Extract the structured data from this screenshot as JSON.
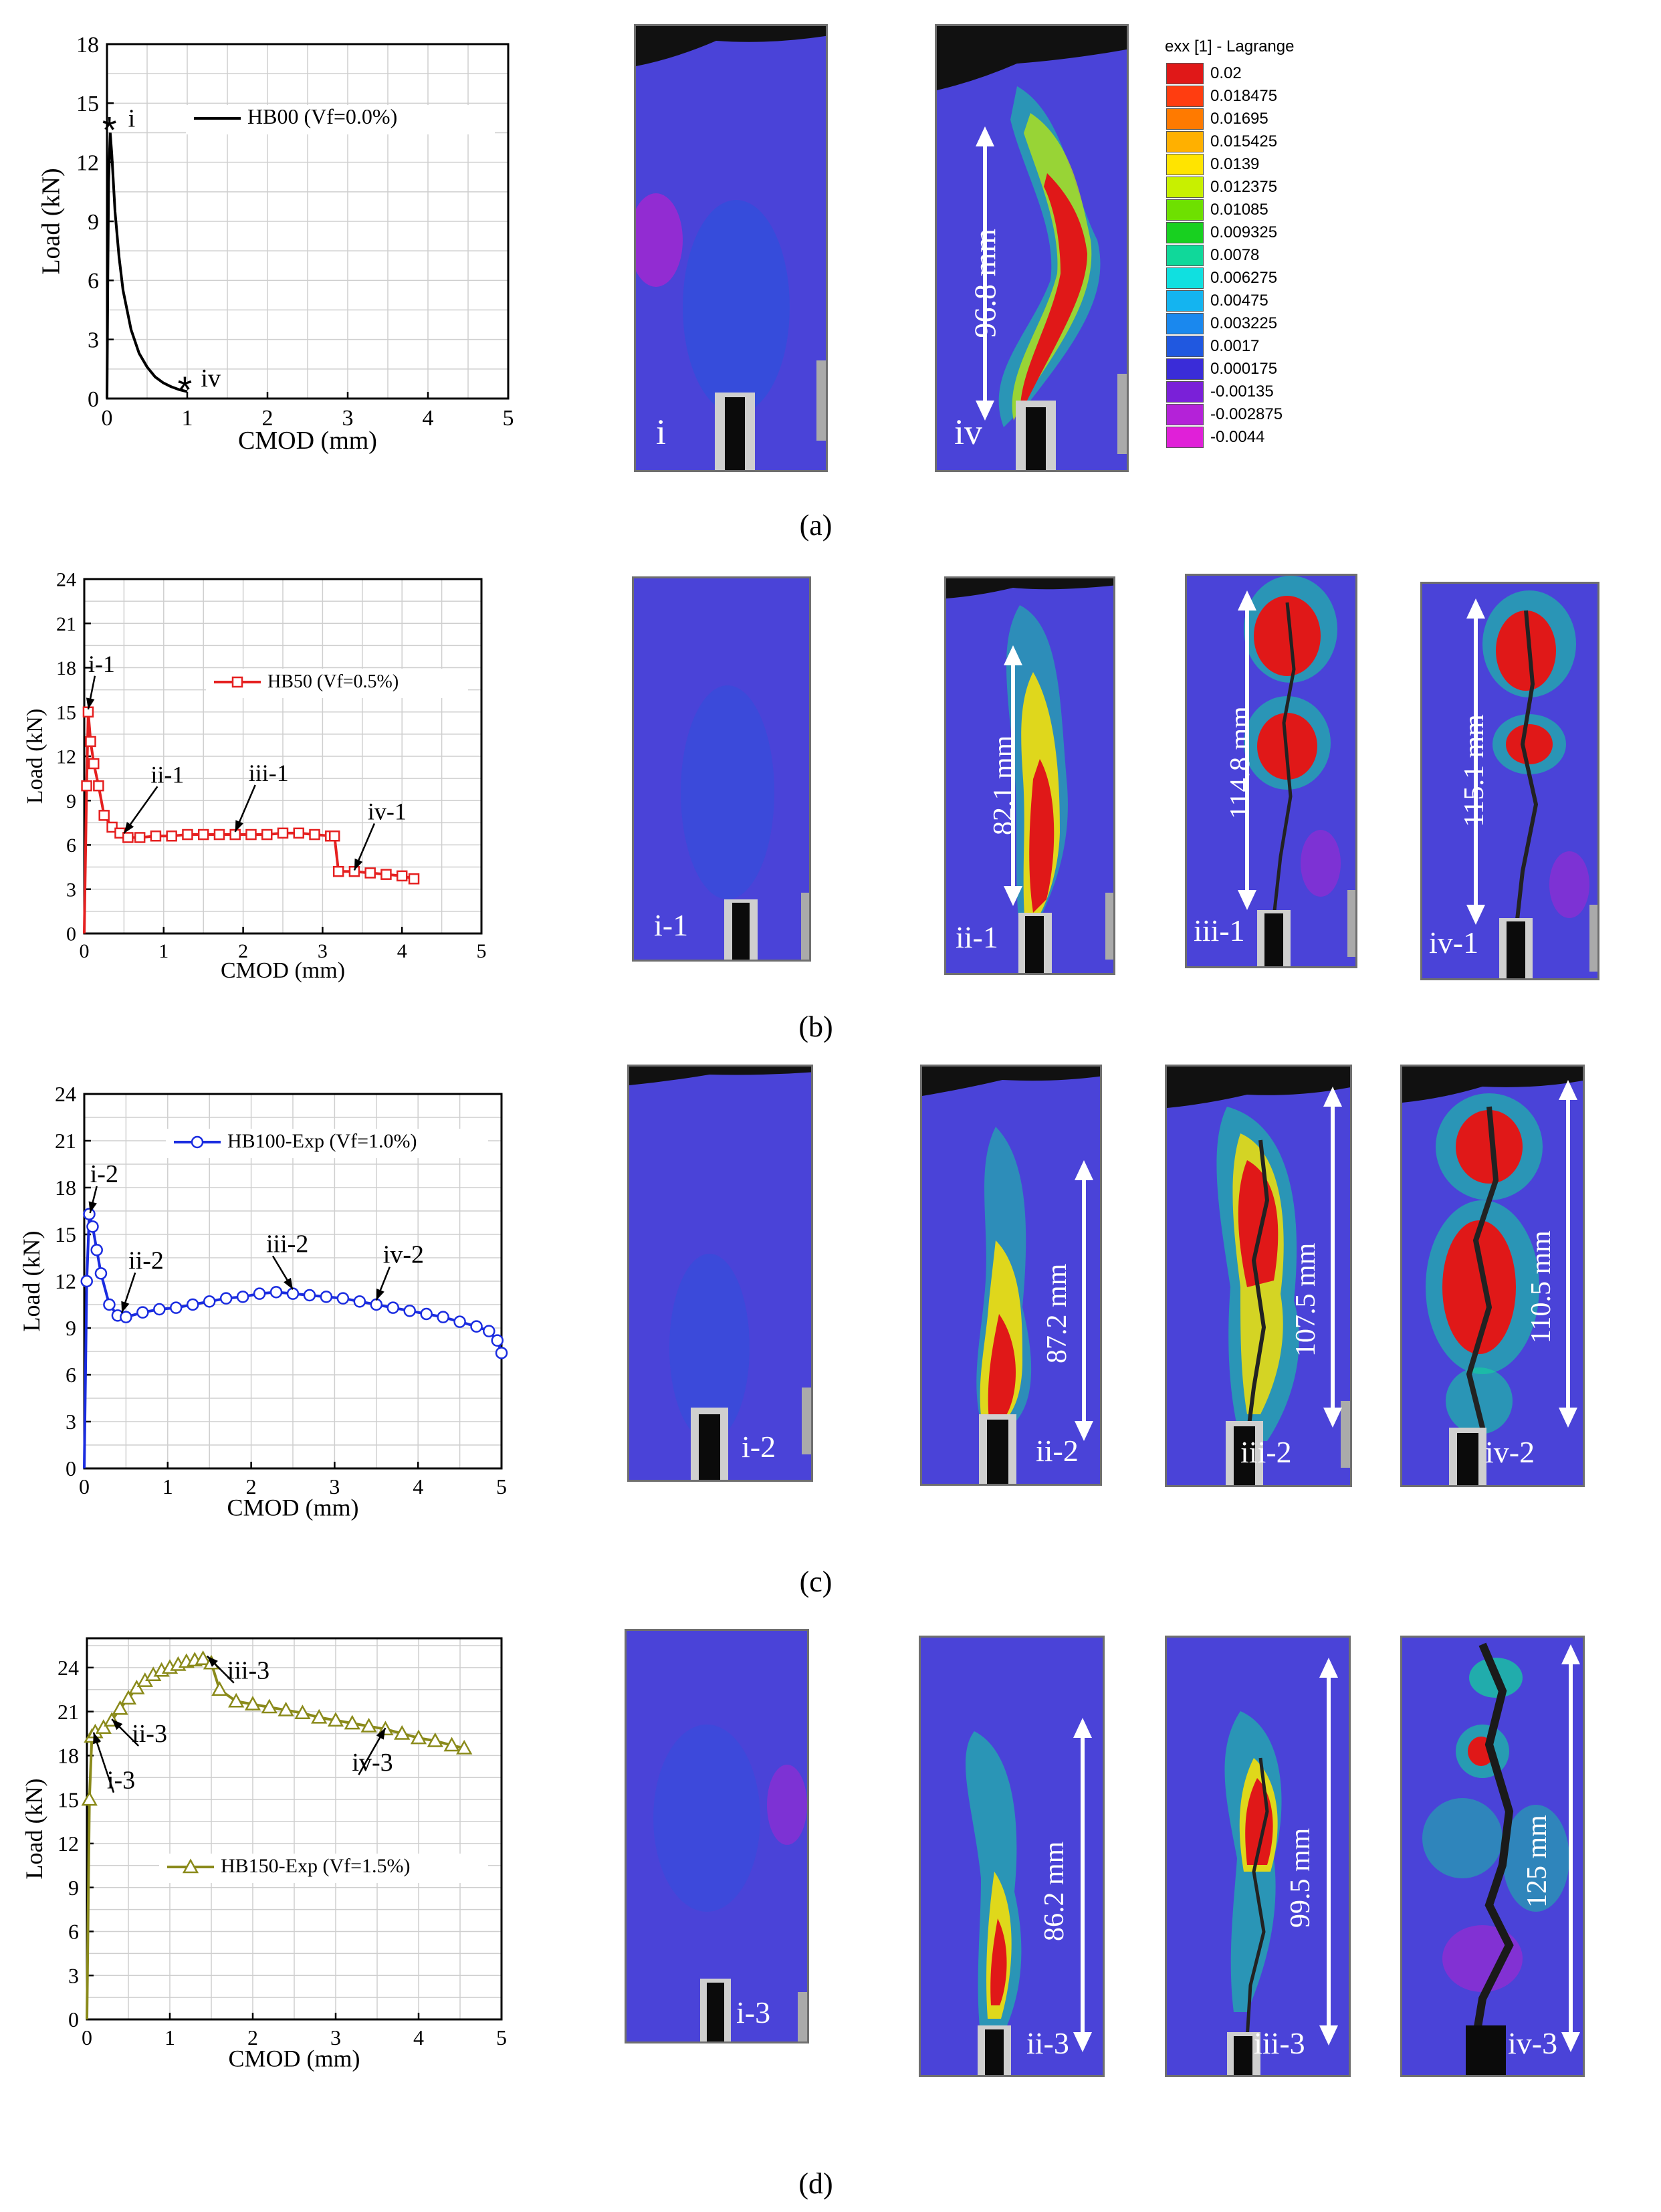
{
  "colors": {
    "field_low": "#4a43d8",
    "specimen_border": "#6f6f6f",
    "a_curve": "#000000",
    "b_curve": "#e52020",
    "c_curve": "#1a2ce0",
    "d_curve": "#8a8a1a"
  },
  "chart_data": [
    {
      "id": "a",
      "type": "line",
      "xlabel": "CMOD (mm)",
      "ylabel": "Load (kN)",
      "xlim": [
        0,
        5
      ],
      "ylim": [
        0,
        18
      ],
      "xticks": [
        "0",
        "1",
        "2",
        "3",
        "4",
        "5"
      ],
      "yticks": [
        "0",
        "3",
        "6",
        "9",
        "12",
        "15",
        "18"
      ],
      "grid": true,
      "legend_position": "top-right",
      "series": [
        {
          "name": "HB00   (Vf=0.0%)",
          "marker": "none",
          "x": [
            0.0,
            0.01,
            0.02,
            0.04,
            0.06,
            0.1,
            0.15,
            0.2,
            0.3,
            0.4,
            0.5,
            0.6,
            0.7,
            0.8,
            0.9,
            1.0
          ],
          "y": [
            0.0,
            6.0,
            11.0,
            13.5,
            12.4,
            9.5,
            7.2,
            5.5,
            3.5,
            2.3,
            1.6,
            1.1,
            0.8,
            0.6,
            0.45,
            0.35
          ]
        }
      ],
      "annotations": [
        {
          "text": "i",
          "x": 0.03,
          "y": 13.6
        },
        {
          "text": "iv",
          "x": 0.97,
          "y": 0.4
        }
      ]
    },
    {
      "id": "b",
      "type": "line",
      "xlabel": "CMOD (mm)",
      "ylabel": "Load (kN)",
      "xlim": [
        0,
        5
      ],
      "ylim": [
        0,
        24
      ],
      "xticks": [
        "0",
        "1",
        "2",
        "3",
        "4",
        "5"
      ],
      "yticks": [
        "0",
        "3",
        "6",
        "9",
        "12",
        "15",
        "18",
        "21",
        "24"
      ],
      "grid": true,
      "legend_position": "top-right",
      "series": [
        {
          "name": "HB50 (Vf=0.5%)",
          "marker": "square",
          "x": [
            0.0,
            0.03,
            0.05,
            0.08,
            0.12,
            0.18,
            0.25,
            0.35,
            0.45,
            0.55,
            0.7,
            0.9,
            1.1,
            1.3,
            1.5,
            1.7,
            1.9,
            2.1,
            2.3,
            2.5,
            2.7,
            2.9,
            3.1,
            3.15,
            3.2,
            3.4,
            3.6,
            3.8,
            4.0,
            4.15
          ],
          "y": [
            0.0,
            10.0,
            15.0,
            13.0,
            11.5,
            10.0,
            8.0,
            7.2,
            6.8,
            6.5,
            6.5,
            6.6,
            6.6,
            6.7,
            6.7,
            6.7,
            6.7,
            6.7,
            6.7,
            6.8,
            6.8,
            6.7,
            6.6,
            6.6,
            4.2,
            4.2,
            4.1,
            4.0,
            3.9,
            3.7
          ]
        }
      ],
      "annotations": [
        {
          "text": "i-1",
          "x": 0.05,
          "y": 15.0
        },
        {
          "text": "ii-1",
          "x": 0.5,
          "y": 6.6
        },
        {
          "text": "iii-1",
          "x": 1.9,
          "y": 6.7
        },
        {
          "text": "iv-1",
          "x": 3.4,
          "y": 4.1
        }
      ]
    },
    {
      "id": "c",
      "type": "line",
      "xlabel": "CMOD (mm)",
      "ylabel": "Load (kN)",
      "xlim": [
        0,
        5
      ],
      "ylim": [
        0,
        24
      ],
      "xticks": [
        "0",
        "1",
        "2",
        "3",
        "4",
        "5"
      ],
      "yticks": [
        "0",
        "3",
        "6",
        "9",
        "12",
        "15",
        "18",
        "21",
        "24"
      ],
      "grid": true,
      "legend_position": "top-right",
      "series": [
        {
          "name": "HB100-Exp (Vf=1.0%)",
          "marker": "circle",
          "x": [
            0.0,
            0.03,
            0.06,
            0.1,
            0.15,
            0.2,
            0.3,
            0.4,
            0.5,
            0.7,
            0.9,
            1.1,
            1.3,
            1.5,
            1.7,
            1.9,
            2.1,
            2.3,
            2.5,
            2.7,
            2.9,
            3.1,
            3.3,
            3.5,
            3.7,
            3.9,
            4.1,
            4.3,
            4.5,
            4.7,
            4.85,
            4.95,
            5.0
          ],
          "y": [
            0.0,
            12.0,
            16.3,
            15.5,
            14.0,
            12.5,
            10.5,
            9.8,
            9.7,
            10.0,
            10.2,
            10.3,
            10.5,
            10.7,
            10.9,
            11.0,
            11.2,
            11.3,
            11.2,
            11.1,
            11.0,
            10.9,
            10.7,
            10.5,
            10.3,
            10.1,
            9.9,
            9.7,
            9.4,
            9.1,
            8.8,
            8.2,
            7.4
          ]
        }
      ],
      "annotations": [
        {
          "text": "i-2",
          "x": 0.07,
          "y": 16.2
        },
        {
          "text": "ii-2",
          "x": 0.45,
          "y": 9.8
        },
        {
          "text": "iii-2",
          "x": 2.5,
          "y": 11.3
        },
        {
          "text": "iv-2",
          "x": 3.5,
          "y": 10.6
        }
      ]
    },
    {
      "id": "d",
      "type": "line",
      "xlabel": "CMOD (mm)",
      "ylabel": "Load (kN)",
      "xlim": [
        0,
        5
      ],
      "ylim": [
        0,
        26
      ],
      "xticks": [
        "0",
        "1",
        "2",
        "3",
        "4",
        "5"
      ],
      "yticks": [
        "0",
        "3",
        "6",
        "9",
        "12",
        "15",
        "18",
        "21",
        "24"
      ],
      "grid": true,
      "legend_position": "center-right",
      "series": [
        {
          "name": "HB150-Exp (Vf=1.5%)",
          "marker": "triangle",
          "x": [
            0.0,
            0.03,
            0.06,
            0.1,
            0.2,
            0.3,
            0.4,
            0.5,
            0.6,
            0.7,
            0.8,
            0.9,
            1.0,
            1.1,
            1.2,
            1.3,
            1.4,
            1.5,
            1.6,
            1.8,
            2.0,
            2.2,
            2.4,
            2.6,
            2.8,
            3.0,
            3.2,
            3.4,
            3.6,
            3.8,
            4.0,
            4.2,
            4.4,
            4.55
          ],
          "y": [
            0.0,
            15.0,
            19.3,
            19.6,
            19.9,
            20.4,
            21.2,
            21.9,
            22.6,
            23.1,
            23.5,
            23.8,
            24.0,
            24.2,
            24.4,
            24.5,
            24.6,
            24.3,
            22.5,
            21.7,
            21.5,
            21.3,
            21.1,
            20.9,
            20.6,
            20.4,
            20.2,
            20.0,
            19.8,
            19.5,
            19.2,
            19.0,
            18.7,
            18.5
          ]
        }
      ],
      "annotations": [
        {
          "text": "i-3",
          "x": 0.08,
          "y": 19.4
        },
        {
          "text": "ii-3",
          "x": 0.3,
          "y": 20.3
        },
        {
          "text": "iii-3",
          "x": 1.45,
          "y": 24.6
        },
        {
          "text": "iv-3",
          "x": 3.6,
          "y": 19.7
        }
      ]
    }
  ],
  "panel_labels": [
    "(a)",
    "(b)",
    "(c)",
    "(d)"
  ],
  "colorbar": {
    "title": "exx [1] - Lagrange",
    "levels": [
      {
        "value": "0.02",
        "color": "#e01818"
      },
      {
        "value": "0.018475",
        "color": "#ff3d10"
      },
      {
        "value": "0.01695",
        "color": "#ff7a00"
      },
      {
        "value": "0.015425",
        "color": "#ffb000"
      },
      {
        "value": "0.0139",
        "color": "#ffe400"
      },
      {
        "value": "0.012375",
        "color": "#c8f000"
      },
      {
        "value": "0.01085",
        "color": "#6ee000"
      },
      {
        "value": "0.009325",
        "color": "#18d020"
      },
      {
        "value": "0.0078",
        "color": "#10d89a"
      },
      {
        "value": "0.006275",
        "color": "#10e0e0"
      },
      {
        "value": "0.00475",
        "color": "#14b4f0"
      },
      {
        "value": "0.003225",
        "color": "#1a88ee"
      },
      {
        "value": "0.0017",
        "color": "#2058e0"
      },
      {
        "value": "0.000175",
        "color": "#3a2cd8"
      },
      {
        "value": "-0.00135",
        "color": "#7a20d8"
      },
      {
        "value": "-0.002875",
        "color": "#b422d8"
      },
      {
        "value": "-0.0044",
        "color": "#e020d8"
      }
    ]
  },
  "dic": {
    "a": [
      {
        "label": "i",
        "dimension": ""
      },
      {
        "label": "iv",
        "dimension": "96.8 mm"
      }
    ],
    "b": [
      {
        "label": "i-1",
        "dimension": ""
      },
      {
        "label": "ii-1",
        "dimension": "82.1 mm"
      },
      {
        "label": "iii-1",
        "dimension": "114.8 mm"
      },
      {
        "label": "iv-1",
        "dimension": "115.1 mm"
      }
    ],
    "c": [
      {
        "label": "i-2",
        "dimension": ""
      },
      {
        "label": "ii-2",
        "dimension": "87.2 mm"
      },
      {
        "label": "iii-2",
        "dimension": "107.5 mm"
      },
      {
        "label": "iv-2",
        "dimension": "110.5 mm"
      }
    ],
    "d": [
      {
        "label": "i-3",
        "dimension": ""
      },
      {
        "label": "ii-3",
        "dimension": "86.2 mm"
      },
      {
        "label": "iii-3",
        "dimension": "99.5 mm"
      },
      {
        "label": "iv-3",
        "dimension": "125 mm"
      }
    ]
  }
}
